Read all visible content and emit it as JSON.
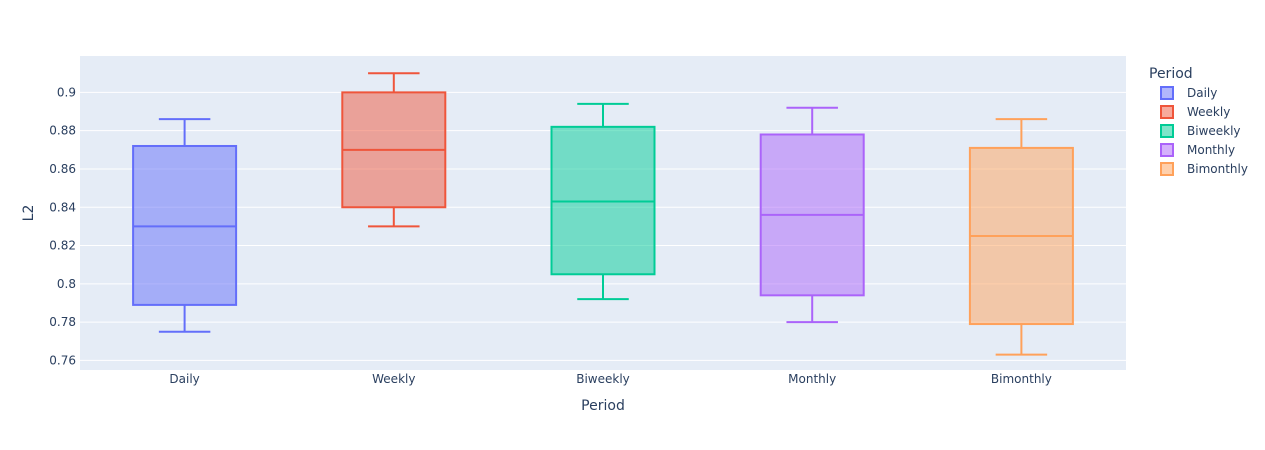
{
  "chart_data": {
    "type": "box",
    "xlabel": "Period",
    "ylabel": "L2",
    "ylim": [
      0.755,
      0.919
    ],
    "yticks": [
      0.76,
      0.78,
      0.8,
      0.82,
      0.84,
      0.86,
      0.88,
      0.9
    ],
    "grid": true,
    "legend": {
      "title": "Period",
      "position": "right"
    },
    "categories": [
      "Daily",
      "Weekly",
      "Biweekly",
      "Monthly",
      "Bimonthly"
    ],
    "series": [
      {
        "name": "Daily",
        "color": "#636efa",
        "min": 0.775,
        "q1": 0.789,
        "median": 0.83,
        "q3": 0.872,
        "max": 0.886
      },
      {
        "name": "Weekly",
        "color": "#ef553b",
        "min": 0.83,
        "q1": 0.84,
        "median": 0.87,
        "q3": 0.9,
        "max": 0.91
      },
      {
        "name": "Biweekly",
        "color": "#00cc96",
        "min": 0.792,
        "q1": 0.805,
        "median": 0.843,
        "q3": 0.882,
        "max": 0.894
      },
      {
        "name": "Monthly",
        "color": "#ab63fa",
        "min": 0.78,
        "q1": 0.794,
        "median": 0.836,
        "q3": 0.878,
        "max": 0.892
      },
      {
        "name": "Bimonthly",
        "color": "#ffa15a",
        "min": 0.763,
        "q1": 0.779,
        "median": 0.825,
        "q3": 0.871,
        "max": 0.886
      }
    ]
  }
}
